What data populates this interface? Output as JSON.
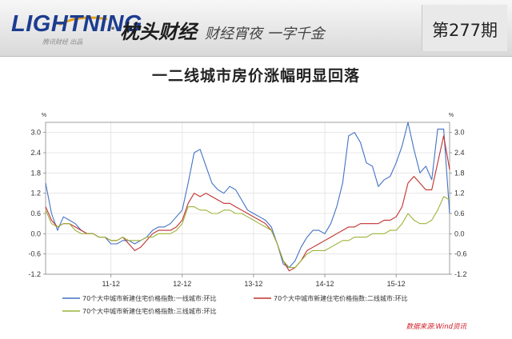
{
  "header": {
    "brand": "LIGHTNING",
    "brand_sub": "腾讯财经 出品",
    "separator": "·",
    "column_name": "枕头财经",
    "slogan": "财经宵夜 一字千金",
    "issue": "第277期"
  },
  "colors": {
    "tier1": "#4472c4",
    "tier2": "#c0312f",
    "tier3": "#9bb43a",
    "brand": "#1b3c8f"
  },
  "chart_data": {
    "type": "line",
    "title": "一二线城市房价涨幅明显回落",
    "y_unit_left": "%",
    "y_unit_right": "%",
    "ylim": [
      -1.2,
      3.3
    ],
    "yticks": [
      "3.0",
      "2.4",
      "1.8",
      "1.2",
      "0.6",
      "0.0",
      "-0.6",
      "-1.2"
    ],
    "ytick_values": [
      3.0,
      2.4,
      1.8,
      1.2,
      0.6,
      0.0,
      -0.6,
      -1.2
    ],
    "xticks": [
      "11-12",
      "12-12",
      "13-12",
      "14-12",
      "15-12"
    ],
    "xtick_index": [
      11,
      23,
      35,
      47,
      59
    ],
    "grid": true,
    "legend_position": "bottom",
    "source": "数据来源:Wind资讯",
    "series": [
      {
        "name": "70个大中城市新建住宅价格指数:一线城市:环比",
        "color_key": "tier1",
        "values": [
          1.5,
          0.6,
          0.1,
          0.5,
          0.4,
          0.3,
          0.1,
          0.0,
          0.0,
          -0.1,
          -0.1,
          -0.3,
          -0.3,
          -0.2,
          -0.2,
          -0.3,
          -0.2,
          -0.1,
          0.1,
          0.2,
          0.2,
          0.3,
          0.5,
          0.7,
          1.5,
          2.4,
          2.5,
          2.0,
          1.5,
          1.3,
          1.2,
          1.4,
          1.3,
          1.0,
          0.7,
          0.6,
          0.5,
          0.4,
          0.2,
          -0.3,
          -0.9,
          -1.0,
          -0.8,
          -0.4,
          -0.1,
          0.1,
          0.1,
          0.0,
          0.3,
          0.8,
          1.5,
          2.9,
          3.0,
          2.7,
          2.1,
          2.0,
          1.4,
          1.6,
          1.7,
          2.1,
          2.6,
          3.3,
          2.5,
          1.8,
          2.0,
          1.6,
          3.1,
          3.1,
          0.6
        ]
      },
      {
        "name": "70个大中城市新建住宅价格指数:二线城市:环比",
        "color_key": "tier2",
        "values": [
          0.8,
          0.4,
          0.2,
          0.3,
          0.3,
          0.2,
          0.1,
          0.0,
          0.0,
          -0.1,
          -0.1,
          -0.2,
          -0.2,
          -0.1,
          -0.3,
          -0.5,
          -0.4,
          -0.2,
          0.0,
          0.1,
          0.1,
          0.1,
          0.2,
          0.4,
          0.9,
          1.2,
          1.1,
          1.2,
          1.1,
          1.0,
          0.9,
          0.9,
          0.8,
          0.7,
          0.6,
          0.5,
          0.4,
          0.3,
          0.1,
          -0.3,
          -0.8,
          -1.1,
          -1.0,
          -0.8,
          -0.5,
          -0.4,
          -0.3,
          -0.2,
          -0.1,
          0.0,
          0.1,
          0.2,
          0.2,
          0.3,
          0.3,
          0.3,
          0.3,
          0.4,
          0.4,
          0.5,
          0.8,
          1.5,
          1.7,
          1.5,
          1.3,
          1.3,
          2.1,
          2.9,
          1.9
        ]
      },
      {
        "name": "70个大中城市新建住宅价格指数:三线城市:环比",
        "color_key": "tier3",
        "values": [
          0.7,
          0.3,
          0.2,
          0.3,
          0.3,
          0.1,
          0.0,
          0.0,
          0.0,
          -0.1,
          -0.1,
          -0.2,
          -0.2,
          -0.1,
          -0.2,
          -0.2,
          -0.2,
          -0.1,
          -0.1,
          0.0,
          0.0,
          0.0,
          0.1,
          0.3,
          0.8,
          0.8,
          0.7,
          0.7,
          0.6,
          0.6,
          0.7,
          0.7,
          0.6,
          0.6,
          0.5,
          0.4,
          0.3,
          0.2,
          0.1,
          -0.3,
          -0.8,
          -1.0,
          -1.0,
          -0.8,
          -0.6,
          -0.5,
          -0.5,
          -0.5,
          -0.4,
          -0.3,
          -0.2,
          -0.2,
          -0.1,
          -0.1,
          -0.1,
          0.0,
          0.0,
          0.0,
          0.1,
          0.1,
          0.3,
          0.6,
          0.4,
          0.3,
          0.3,
          0.4,
          0.7,
          1.1,
          1.0
        ]
      }
    ]
  }
}
